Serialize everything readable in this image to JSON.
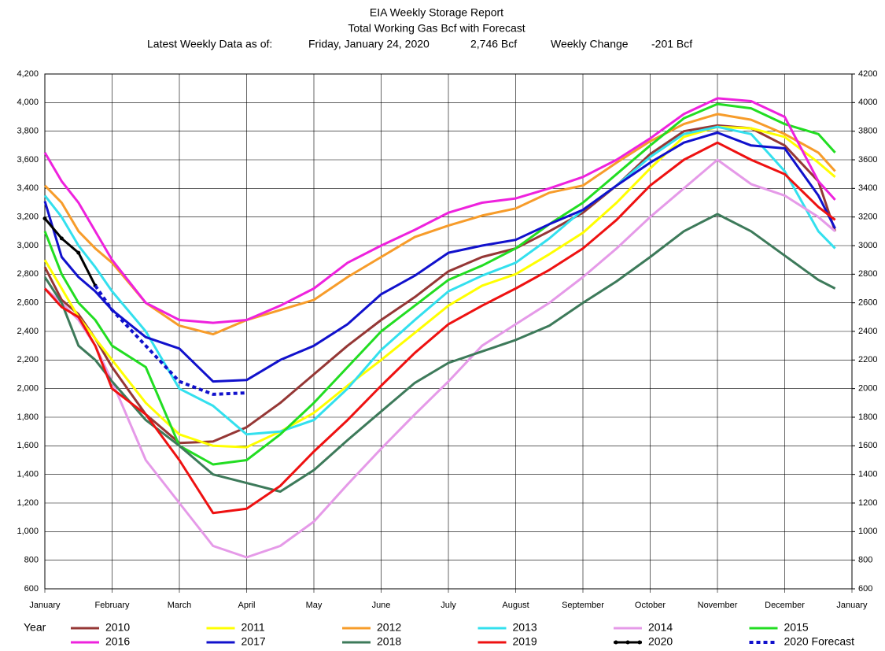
{
  "chart_data": {
    "type": "line",
    "title": "EIA Weekly Storage Report",
    "subtitle": "Total Working Gas Bcf with Forecast",
    "header": {
      "label": "Latest Weekly Data as of:",
      "date": "Friday, January 24, 2020",
      "storage": "2,746 Bcf",
      "change_label": "Weekly Change",
      "change": "-201 Bcf"
    },
    "legend_title": "Year",
    "grid": true,
    "xlim": [
      0,
      12
    ],
    "xticks": [
      {
        "value": 0,
        "label": "January"
      },
      {
        "value": 1,
        "label": "February"
      },
      {
        "value": 2,
        "label": "March"
      },
      {
        "value": 3,
        "label": "April"
      },
      {
        "value": 4,
        "label": "May"
      },
      {
        "value": 5,
        "label": "June"
      },
      {
        "value": 6,
        "label": "July"
      },
      {
        "value": 7,
        "label": "August"
      },
      {
        "value": 8,
        "label": "September"
      },
      {
        "value": 9,
        "label": "October"
      },
      {
        "value": 10,
        "label": "November"
      },
      {
        "value": 11,
        "label": "December"
      },
      {
        "value": 12,
        "label": "January"
      }
    ],
    "ylim": [
      600,
      4200
    ],
    "yticks": [
      600,
      800,
      {
        "value": 1000,
        "label": "1,000"
      },
      {
        "value": 1200,
        "label": "1,200"
      },
      {
        "value": 1400,
        "label": "1,400"
      },
      {
        "value": 1600,
        "label": "1,600"
      },
      {
        "value": 1800,
        "label": "1,800"
      },
      {
        "value": 2000,
        "label": "2,000"
      },
      {
        "value": 2200,
        "label": "2,200"
      },
      {
        "value": 2400,
        "label": "2,400"
      },
      {
        "value": 2600,
        "label": "2,600"
      },
      {
        "value": 2800,
        "label": "2,800"
      },
      {
        "value": 3000,
        "label": "3,000"
      },
      {
        "value": 3200,
        "label": "3,200"
      },
      {
        "value": 3400,
        "label": "3,400"
      },
      {
        "value": 3600,
        "label": "3,600"
      },
      {
        "value": 3800,
        "label": "3,800"
      },
      {
        "value": 4000,
        "label": "4,000"
      },
      {
        "value": 4200,
        "label": "4,200"
      }
    ],
    "y2lim": [
      600,
      4200
    ],
    "y2ticks": [
      600,
      800,
      1000,
      1200,
      1400,
      1600,
      1800,
      2000,
      2200,
      2400,
      2600,
      2800,
      3000,
      3200,
      3400,
      3600,
      3800,
      4000,
      4200
    ],
    "x": [
      0,
      0.25,
      0.5,
      0.75,
      1,
      1.5,
      2,
      2.5,
      3,
      3.5,
      4,
      4.5,
      5,
      5.5,
      6,
      6.5,
      7,
      7.5,
      8,
      8.5,
      9,
      9.5,
      10,
      10.5,
      11,
      11.5,
      11.75
    ],
    "series": [
      {
        "name": "2010",
        "color": "#953735",
        "values": [
          2850,
          2620,
          2520,
          2350,
          2150,
          1820,
          1620,
          1630,
          1730,
          1900,
          2100,
          2300,
          2480,
          2640,
          2820,
          2920,
          2980,
          3100,
          3230,
          3420,
          3640,
          3800,
          3840,
          3820,
          3700,
          3450,
          3100
        ]
      },
      {
        "name": "2011",
        "color": "#ffff00",
        "values": [
          2900,
          2700,
          2500,
          2350,
          2200,
          1900,
          1680,
          1600,
          1590,
          1700,
          1830,
          2020,
          2200,
          2390,
          2580,
          2720,
          2800,
          2940,
          3090,
          3300,
          3540,
          3760,
          3830,
          3820,
          3760,
          3580,
          3480
        ]
      },
      {
        "name": "2012",
        "color": "#f79c2a",
        "values": [
          3420,
          3300,
          3100,
          2980,
          2880,
          2600,
          2440,
          2380,
          2480,
          2550,
          2620,
          2780,
          2920,
          3060,
          3140,
          3210,
          3260,
          3370,
          3420,
          3580,
          3730,
          3850,
          3920,
          3880,
          3780,
          3650,
          3520
        ]
      },
      {
        "name": "2013",
        "color": "#33e0ee",
        "values": [
          3350,
          3200,
          3000,
          2850,
          2680,
          2400,
          2000,
          1880,
          1680,
          1700,
          1780,
          2000,
          2270,
          2480,
          2680,
          2790,
          2880,
          3050,
          3250,
          3420,
          3620,
          3780,
          3830,
          3780,
          3520,
          3100,
          2980
        ]
      },
      {
        "name": "2014",
        "color": "#e59ae8",
        "values": [
          2700,
          2600,
          2480,
          2300,
          2050,
          1500,
          1200,
          900,
          820,
          900,
          1070,
          1330,
          1580,
          1820,
          2050,
          2300,
          2450,
          2600,
          2780,
          2980,
          3200,
          3400,
          3600,
          3430,
          3350,
          3200,
          3100
        ]
      },
      {
        "name": "2015",
        "color": "#22dd22",
        "values": [
          3100,
          2800,
          2600,
          2480,
          2300,
          2150,
          1600,
          1470,
          1500,
          1680,
          1900,
          2150,
          2400,
          2580,
          2760,
          2860,
          2980,
          3150,
          3300,
          3500,
          3700,
          3890,
          3990,
          3960,
          3850,
          3780,
          3650
        ]
      },
      {
        "name": "2016",
        "color": "#ee22dd",
        "values": [
          3650,
          3450,
          3300,
          3100,
          2900,
          2600,
          2480,
          2460,
          2480,
          2580,
          2700,
          2880,
          3000,
          3110,
          3230,
          3300,
          3330,
          3400,
          3480,
          3600,
          3750,
          3920,
          4030,
          4010,
          3900,
          3450,
          3320
        ]
      },
      {
        "name": "2017",
        "color": "#1111cc",
        "values": [
          3310,
          2920,
          2780,
          2680,
          2550,
          2360,
          2280,
          2050,
          2060,
          2200,
          2300,
          2450,
          2660,
          2790,
          2950,
          3000,
          3040,
          3150,
          3250,
          3420,
          3580,
          3720,
          3790,
          3700,
          3680,
          3350,
          3120
        ]
      },
      {
        "name": "2018",
        "color": "#3d7a5a",
        "values": [
          2780,
          2600,
          2300,
          2200,
          2050,
          1780,
          1600,
          1400,
          1340,
          1280,
          1430,
          1640,
          1840,
          2040,
          2180,
          2260,
          2340,
          2440,
          2600,
          2750,
          2920,
          3100,
          3220,
          3100,
          2930,
          2760,
          2700
        ]
      },
      {
        "name": "2019",
        "color": "#ee1111",
        "values": [
          2700,
          2570,
          2500,
          2300,
          2000,
          1820,
          1500,
          1130,
          1160,
          1320,
          1560,
          1780,
          2020,
          2250,
          2450,
          2580,
          2700,
          2830,
          2980,
          3180,
          3420,
          3600,
          3720,
          3600,
          3500,
          3270,
          3180
        ]
      },
      {
        "name": "2020",
        "color": "#000000",
        "markers": true,
        "values": [
          3190,
          3050,
          2950,
          2720,
          null,
          null,
          null,
          null,
          null,
          null,
          null,
          null,
          null,
          null,
          null,
          null,
          null,
          null,
          null,
          null,
          null,
          null,
          null,
          null,
          null,
          null,
          null
        ]
      },
      {
        "name": "2020 Forecast",
        "color": "#1111cc",
        "dashed": true,
        "values": [
          null,
          null,
          null,
          2720,
          2550,
          2300,
          2050,
          1960,
          1970,
          null,
          null,
          null,
          null,
          null,
          null,
          null,
          null,
          null,
          null,
          null,
          null,
          null,
          null,
          null,
          null,
          null,
          null
        ]
      }
    ]
  }
}
